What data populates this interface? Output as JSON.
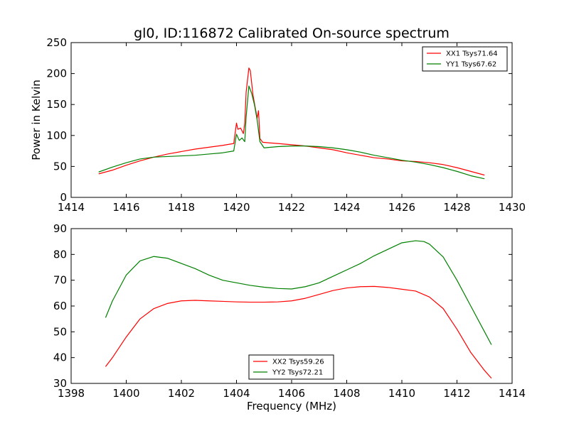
{
  "figure": {
    "title": "gl0, ID:116872 Calibrated On-source spectrum"
  },
  "chart_data": [
    {
      "type": "line",
      "title": "gl0, ID:116872 Calibrated On-source spectrum",
      "xlabel": "",
      "ylabel": "Power in Kelvin",
      "xlim": [
        1414,
        1430
      ],
      "ylim": [
        0,
        250
      ],
      "xticks": [
        1414,
        1416,
        1418,
        1420,
        1422,
        1424,
        1426,
        1428,
        1430
      ],
      "yticks": [
        0,
        50,
        100,
        150,
        200,
        250
      ],
      "grid": false,
      "legend": "top-right",
      "series": [
        {
          "name": "XX1 Tsys71.64",
          "color": "#ff0000",
          "x": [
            1415.0,
            1415.5,
            1416.0,
            1416.5,
            1417.0,
            1417.5,
            1418.0,
            1418.5,
            1419.0,
            1419.5,
            1419.9,
            1420.0,
            1420.05,
            1420.15,
            1420.25,
            1420.3,
            1420.35,
            1420.45,
            1420.5,
            1420.6,
            1420.7,
            1420.75,
            1420.8,
            1420.85,
            1420.95,
            1421.2,
            1421.5,
            1422.0,
            1422.5,
            1423.0,
            1423.5,
            1424.0,
            1424.5,
            1425.0,
            1425.5,
            1426.0,
            1426.5,
            1427.0,
            1427.5,
            1428.0,
            1428.5,
            1429.0
          ],
          "values": [
            38,
            44,
            52,
            59,
            65,
            70,
            74,
            78,
            81,
            84,
            87,
            120,
            110,
            112,
            103,
            120,
            170,
            209,
            205,
            165,
            140,
            128,
            140,
            95,
            89,
            88,
            87,
            85,
            83,
            80,
            77,
            72,
            68,
            64,
            62,
            59,
            58,
            56,
            53,
            48,
            42,
            36
          ]
        },
        {
          "name": "YY1 Tsys67.62",
          "color": "#008000",
          "x": [
            1415.0,
            1415.5,
            1416.0,
            1416.5,
            1417.0,
            1417.5,
            1418.0,
            1418.5,
            1419.0,
            1419.5,
            1419.9,
            1420.0,
            1420.1,
            1420.2,
            1420.3,
            1420.35,
            1420.45,
            1420.55,
            1420.65,
            1420.75,
            1420.85,
            1421.0,
            1421.5,
            1422.0,
            1422.5,
            1423.0,
            1423.5,
            1424.0,
            1424.5,
            1425.0,
            1425.5,
            1426.0,
            1426.5,
            1427.0,
            1427.5,
            1428.0,
            1428.5,
            1429.0
          ],
          "values": [
            41,
            49,
            56,
            62,
            65,
            66,
            67,
            68,
            70,
            72,
            75,
            102,
            92,
            96,
            90,
            130,
            180,
            168,
            150,
            125,
            90,
            80,
            82,
            83,
            83,
            82,
            80,
            77,
            73,
            68,
            64,
            60,
            57,
            53,
            48,
            42,
            35,
            30
          ]
        }
      ]
    },
    {
      "type": "line",
      "title": "",
      "xlabel": "Frequency (MHz)",
      "ylabel": "",
      "xlim": [
        1398,
        1414
      ],
      "ylim": [
        30,
        90
      ],
      "xticks": [
        1398,
        1400,
        1402,
        1404,
        1406,
        1408,
        1410,
        1412,
        1414
      ],
      "yticks": [
        30,
        40,
        50,
        60,
        70,
        80,
        90
      ],
      "grid": false,
      "legend": "bottom-center",
      "series": [
        {
          "name": "XX2 Tsys59.26",
          "color": "#ff0000",
          "x": [
            1399.25,
            1399.5,
            1400.0,
            1400.5,
            1401.0,
            1401.5,
            1402.0,
            1402.5,
            1403.0,
            1403.5,
            1404.0,
            1404.5,
            1405.0,
            1405.5,
            1406.0,
            1406.5,
            1407.0,
            1407.5,
            1408.0,
            1408.5,
            1409.0,
            1409.5,
            1410.0,
            1410.5,
            1411.0,
            1411.5,
            1412.0,
            1412.5,
            1413.0,
            1413.25
          ],
          "values": [
            36.5,
            40,
            48,
            55,
            59,
            61,
            62,
            62.2,
            62,
            61.8,
            61.6,
            61.5,
            61.5,
            61.6,
            62,
            63,
            64.5,
            66,
            67,
            67.5,
            67.6,
            67.2,
            66.5,
            65.8,
            63.5,
            59,
            51,
            42,
            35,
            32
          ]
        },
        {
          "name": "YY2 Tsys72.21",
          "color": "#008000",
          "x": [
            1399.25,
            1399.5,
            1400.0,
            1400.5,
            1401.0,
            1401.5,
            1402.0,
            1402.5,
            1403.0,
            1403.5,
            1404.0,
            1404.5,
            1405.0,
            1405.5,
            1406.0,
            1406.5,
            1407.0,
            1407.5,
            1408.0,
            1408.5,
            1409.0,
            1409.5,
            1410.0,
            1410.5,
            1410.8,
            1411.0,
            1411.5,
            1412.0,
            1412.5,
            1413.0,
            1413.25
          ],
          "values": [
            55.5,
            62,
            72,
            77.5,
            79.2,
            78.5,
            76.5,
            74.5,
            72,
            70,
            69,
            68,
            67.3,
            66.8,
            66.6,
            67.5,
            69,
            71.5,
            74,
            76.5,
            79.5,
            82,
            84.5,
            85.3,
            85,
            84,
            79,
            70,
            60,
            50,
            45
          ]
        }
      ]
    }
  ]
}
